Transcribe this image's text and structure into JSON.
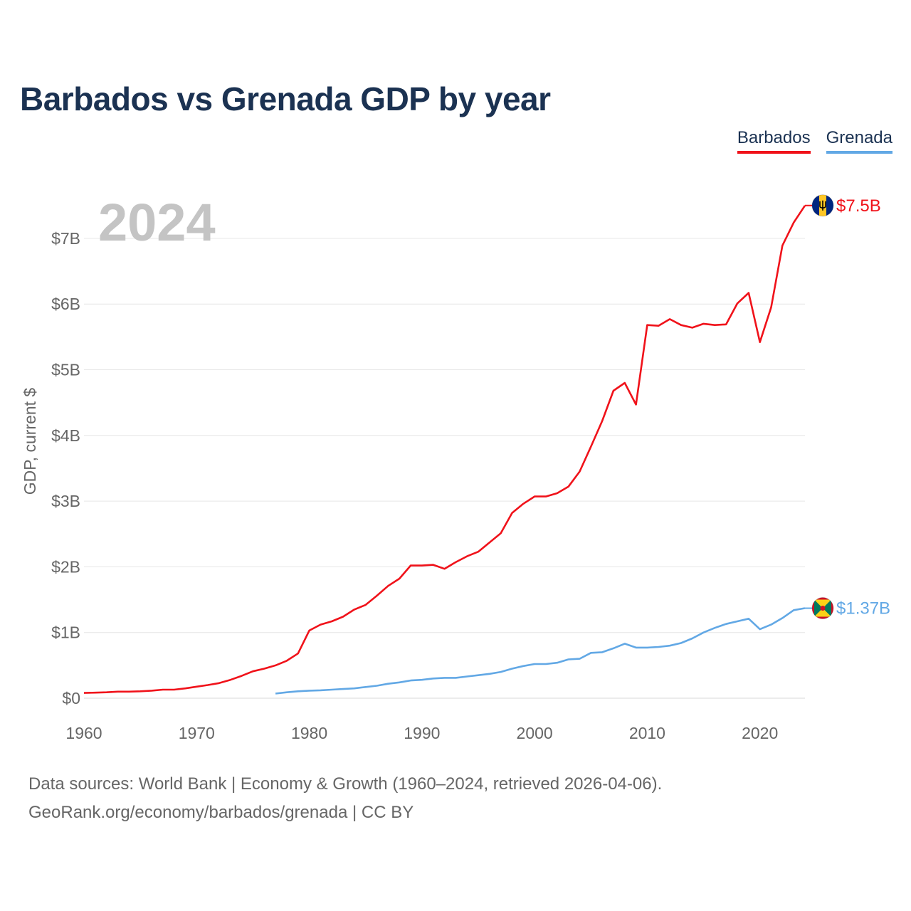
{
  "title": "Barbados vs Grenada GDP by year",
  "legend": [
    {
      "name": "Barbados",
      "color": "#f0121a"
    },
    {
      "name": "Grenada",
      "color": "#62a8e5"
    }
  ],
  "year_label": "2024",
  "footer": {
    "line1": "Data sources: World Bank | Economy & Growth (1960–2024, retrieved 2026-04-06).",
    "line2": "GeoRank.org/economy/barbados/grenada | CC BY"
  },
  "chart_data": {
    "type": "line",
    "title": "Barbados vs Grenada GDP by year",
    "xlabel": "",
    "ylabel": "GDP, current $",
    "xlim": [
      1960,
      2024
    ],
    "ylim": [
      0,
      7.5
    ],
    "y_ticks": [
      {
        "value": 0,
        "label": "$0"
      },
      {
        "value": 1,
        "label": "$1B"
      },
      {
        "value": 2,
        "label": "$2B"
      },
      {
        "value": 3,
        "label": "$3B"
      },
      {
        "value": 4,
        "label": "$4B"
      },
      {
        "value": 5,
        "label": "$5B"
      },
      {
        "value": 6,
        "label": "$6B"
      },
      {
        "value": 7,
        "label": "$7B"
      }
    ],
    "x_ticks": [
      1960,
      1970,
      1980,
      1990,
      2000,
      2010,
      2020
    ],
    "unit": "billions of current US$",
    "series": [
      {
        "name": "Barbados",
        "color": "#f0121a",
        "end_label": "$7.5B",
        "flag": "barbados-flag-icon",
        "x": [
          1960,
          1961,
          1962,
          1963,
          1964,
          1965,
          1966,
          1967,
          1968,
          1969,
          1970,
          1971,
          1972,
          1973,
          1974,
          1975,
          1976,
          1977,
          1978,
          1979,
          1980,
          1981,
          1982,
          1983,
          1984,
          1985,
          1986,
          1987,
          1988,
          1989,
          1990,
          1991,
          1992,
          1993,
          1994,
          1995,
          1996,
          1997,
          1998,
          1999,
          2000,
          2001,
          2002,
          2003,
          2004,
          2005,
          2006,
          2007,
          2008,
          2009,
          2010,
          2011,
          2012,
          2013,
          2014,
          2015,
          2016,
          2017,
          2018,
          2019,
          2020,
          2021,
          2022,
          2023,
          2024
        ],
        "values": [
          0.08,
          0.085,
          0.09,
          0.1,
          0.1,
          0.105,
          0.115,
          0.13,
          0.13,
          0.15,
          0.175,
          0.2,
          0.23,
          0.28,
          0.34,
          0.41,
          0.45,
          0.5,
          0.57,
          0.68,
          1.03,
          1.12,
          1.17,
          1.24,
          1.35,
          1.42,
          1.56,
          1.71,
          1.82,
          2.02,
          2.02,
          2.03,
          1.97,
          2.07,
          2.16,
          2.23,
          2.37,
          2.51,
          2.82,
          2.96,
          3.07,
          3.07,
          3.12,
          3.22,
          3.45,
          3.83,
          4.22,
          4.68,
          4.8,
          4.47,
          5.68,
          5.67,
          5.77,
          5.68,
          5.64,
          5.7,
          5.68,
          5.69,
          6.01,
          6.17,
          5.42,
          5.95,
          6.89,
          7.24,
          7.5
        ]
      },
      {
        "name": "Grenada",
        "color": "#62a8e5",
        "end_label": "$1.37B",
        "flag": "grenada-flag-icon",
        "x": [
          1977,
          1978,
          1979,
          1980,
          1981,
          1982,
          1983,
          1984,
          1985,
          1986,
          1987,
          1988,
          1989,
          1990,
          1991,
          1992,
          1993,
          1994,
          1995,
          1996,
          1997,
          1998,
          1999,
          2000,
          2001,
          2002,
          2003,
          2004,
          2005,
          2006,
          2007,
          2008,
          2009,
          2010,
          2011,
          2012,
          2013,
          2014,
          2015,
          2016,
          2017,
          2018,
          2019,
          2020,
          2021,
          2022,
          2023,
          2024
        ],
        "values": [
          0.07,
          0.09,
          0.105,
          0.115,
          0.12,
          0.13,
          0.14,
          0.15,
          0.17,
          0.19,
          0.22,
          0.24,
          0.27,
          0.28,
          0.3,
          0.31,
          0.31,
          0.33,
          0.35,
          0.37,
          0.4,
          0.45,
          0.49,
          0.52,
          0.52,
          0.54,
          0.59,
          0.6,
          0.69,
          0.7,
          0.76,
          0.83,
          0.77,
          0.77,
          0.78,
          0.8,
          0.84,
          0.91,
          1.0,
          1.07,
          1.13,
          1.17,
          1.21,
          1.05,
          1.12,
          1.22,
          1.34,
          1.37
        ]
      }
    ]
  }
}
